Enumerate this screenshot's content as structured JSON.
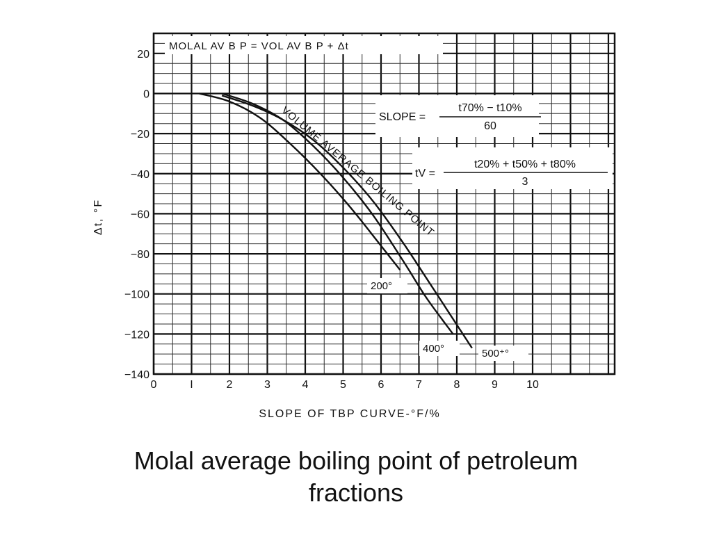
{
  "chart_data": {
    "type": "line",
    "title": "",
    "xlabel": "SLOPE OF TBP CURVE-°F/%",
    "ylabel": "Δt, °F",
    "xlim": [
      0,
      12
    ],
    "ylim": [
      -140,
      30
    ],
    "x_ticks": [
      0,
      1,
      2,
      3,
      4,
      5,
      6,
      7,
      8,
      9,
      10
    ],
    "x_tick_labels": [
      "0",
      "I",
      "2",
      "3",
      "4",
      "5",
      "6",
      "7",
      "8",
      "9",
      "10"
    ],
    "y_ticks": [
      20,
      0,
      -20,
      -40,
      -60,
      -80,
      -100,
      -120,
      -140
    ],
    "y_tick_labels": [
      "20",
      "0",
      "−20",
      "−40",
      "−60",
      "−80",
      "−100",
      "−120",
      "−140"
    ],
    "grid": true,
    "series": [
      {
        "name": "200°",
        "x": [
          1.2,
          2.0,
          2.8,
          3.6,
          4.4,
          5.2,
          6.0,
          6.5
        ],
        "y": [
          0,
          -4,
          -12,
          -25,
          -40,
          -57,
          -76,
          -88
        ]
      },
      {
        "name": "400°",
        "x": [
          1.8,
          2.6,
          3.4,
          4.2,
          5.0,
          5.8,
          6.6,
          7.2,
          7.9
        ],
        "y": [
          0,
          -5,
          -13,
          -26,
          -42,
          -61,
          -84,
          -102,
          -120
        ]
      },
      {
        "name": "500⁺°",
        "x": [
          1.8,
          2.6,
          3.4,
          4.2,
          5.0,
          5.8,
          6.6,
          7.4,
          8.4
        ],
        "y": [
          -1,
          -6,
          -13,
          -23,
          -37,
          -54,
          -75,
          -98,
          -127
        ]
      }
    ],
    "annotations": {
      "equation": "MOLAL AV B P = VOL AV B P + Δt",
      "curve_family_label": "VOLUME AVERAGE BOILING POINT",
      "slope_formula": {
        "lhs": "SLOPE =",
        "numerator": "t70% − t10%",
        "denominator": "60"
      },
      "tv_formula": {
        "lhs": "tV =",
        "numerator": "t20% + t50% + t80%",
        "denominator": "3"
      }
    }
  },
  "caption": {
    "line1": "Molal average boiling point of petroleum",
    "line2": "fractions"
  }
}
